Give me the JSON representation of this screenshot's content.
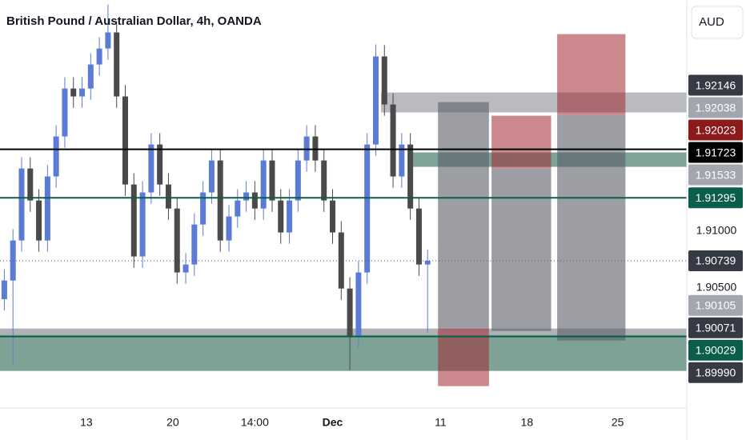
{
  "chart_data": {
    "type": "candlestick",
    "title": "British Pound / Australian Dollar, 4h, OANDA",
    "currency": "AUD",
    "xlim": [
      0,
      79.5
    ],
    "ylim": [
      1.8944,
      1.9304
    ],
    "xticks": [
      {
        "value": 10,
        "label": "13"
      },
      {
        "value": 20,
        "label": "20"
      },
      {
        "value": 29.5,
        "label": "14:00"
      },
      {
        "value": 38.5,
        "label": "Dec"
      },
      {
        "value": 51,
        "label": "11"
      },
      {
        "value": 61,
        "label": "18"
      },
      {
        "value": 71.5,
        "label": "25"
      }
    ],
    "yticks": [
      {
        "value": 1.91,
        "label": "1.91000"
      },
      {
        "value": 1.905,
        "label": "1.90500"
      }
    ],
    "up_color": "#5b7bd5",
    "down_color": "#4a4a4a",
    "open": [
      1.904,
      1.90565,
      1.90918,
      1.91553,
      1.91271,
      1.90918,
      1.91483,
      1.91836,
      1.92259,
      1.92189,
      1.92259,
      1.92471,
      1.92612,
      1.92754,
      1.92189,
      1.91412,
      1.90777,
      1.91342,
      1.91765,
      1.91412,
      1.912,
      1.90636,
      1.90706,
      1.91059,
      1.91342,
      1.91624,
      1.90918,
      1.9113,
      1.91271,
      1.91342,
      1.912,
      1.91624,
      1.91271,
      1.90989,
      1.91271,
      1.91624,
      1.91836,
      1.91624,
      1.91271,
      1.90989,
      1.90494,
      1.90071,
      1.90636,
      1.91765,
      1.92542,
      1.92118,
      1.91483,
      1.91765,
      1.912,
      1.90706
    ],
    "high": [
      1.90665,
      1.91018,
      1.91653,
      1.91653,
      1.91371,
      1.91583,
      1.91936,
      1.92359,
      1.92359,
      1.92359,
      1.92571,
      1.92712,
      1.93001,
      1.92854,
      1.92289,
      1.91512,
      1.91442,
      1.91865,
      1.91865,
      1.91512,
      1.913,
      1.90806,
      1.91159,
      1.91442,
      1.91724,
      1.91724,
      1.9123,
      1.91371,
      1.91442,
      1.91442,
      1.91724,
      1.91724,
      1.91371,
      1.91371,
      1.91724,
      1.91936,
      1.91936,
      1.91724,
      1.91371,
      1.91089,
      1.90594,
      1.90736,
      1.91865,
      1.92648,
      1.92642,
      1.92218,
      1.91865,
      1.91865,
      1.913,
      1.90839
    ],
    "low": [
      1.903,
      1.89824,
      1.90818,
      1.91171,
      1.90818,
      1.90818,
      1.91383,
      1.91736,
      1.92089,
      1.92089,
      1.92159,
      1.92371,
      1.92512,
      1.92089,
      1.91312,
      1.90677,
      1.90677,
      1.91242,
      1.91312,
      1.911,
      1.90536,
      1.90536,
      1.90606,
      1.90959,
      1.91242,
      1.90818,
      1.90818,
      1.9103,
      1.91171,
      1.911,
      1.911,
      1.91171,
      1.90889,
      1.90889,
      1.91171,
      1.91524,
      1.91524,
      1.91171,
      1.90889,
      1.90394,
      1.89775,
      1.89971,
      1.90536,
      1.91665,
      1.92018,
      1.91383,
      1.91383,
      1.911,
      1.90606,
      1.90106
    ],
    "close": [
      1.90565,
      1.90918,
      1.91553,
      1.91271,
      1.90918,
      1.91483,
      1.91836,
      1.92259,
      1.92189,
      1.92259,
      1.92471,
      1.92612,
      1.92754,
      1.92189,
      1.91412,
      1.90777,
      1.91342,
      1.91765,
      1.91412,
      1.912,
      1.90636,
      1.90706,
      1.91059,
      1.91342,
      1.91624,
      1.90918,
      1.9113,
      1.91271,
      1.91342,
      1.912,
      1.91624,
      1.91271,
      1.90989,
      1.91271,
      1.91624,
      1.91836,
      1.91624,
      1.91271,
      1.90989,
      1.90494,
      1.90071,
      1.90636,
      1.91765,
      1.92542,
      1.92118,
      1.91483,
      1.91765,
      1.912,
      1.90706,
      1.90739
    ],
    "zones": [
      {
        "x0": 44.1,
        "x1": 79.5,
        "top": 1.92224,
        "bottom": 1.92048,
        "color": "rgba(100,104,115,0.45)"
      },
      {
        "x0": 47.5,
        "x1": 79.5,
        "top": 1.91695,
        "bottom": 1.91568,
        "color": "rgba(20,90,70,0.55)"
      },
      {
        "x0": 0,
        "x1": 79.5,
        "top": 1.90141,
        "bottom": 1.90085,
        "color": "rgba(110,113,124,0.55)"
      },
      {
        "x0": 0,
        "x1": 79.5,
        "top": 1.90085,
        "bottom": 1.89767,
        "color": "rgba(40,100,80,0.6)"
      },
      {
        "x0": 50.7,
        "x1": 56.6,
        "top": 1.92139,
        "bottom": 1.90141,
        "color": "rgba(90,94,104,0.6)"
      },
      {
        "x0": 50.7,
        "x1": 56.6,
        "top": 1.90141,
        "bottom": 1.89633,
        "color": "rgba(160,40,50,0.55)"
      },
      {
        "x0": 56.9,
        "x1": 63.8,
        "top": 1.92019,
        "bottom": 1.91553,
        "color": "rgba(160,40,50,0.55)"
      },
      {
        "x0": 56.9,
        "x1": 63.8,
        "top": 1.91553,
        "bottom": 1.9012,
        "color": "rgba(90,94,104,0.6)"
      },
      {
        "x0": 64.5,
        "x1": 72.4,
        "top": 1.92739,
        "bottom": 1.92026,
        "color": "rgba(160,40,50,0.55)"
      },
      {
        "x0": 64.5,
        "x1": 72.4,
        "top": 1.92026,
        "bottom": 1.90035,
        "color": "rgba(90,94,104,0.6)"
      }
    ],
    "levels": [
      {
        "value": 1.91723,
        "color": "#000000",
        "style": "solid"
      },
      {
        "value": 1.91295,
        "color": "#0b5e4a",
        "style": "solid"
      },
      {
        "value": 1.90739,
        "color": "#555555",
        "style": "dotted"
      },
      {
        "value": 1.90071,
        "color": "#0b5e4a",
        "style": "solid"
      }
    ],
    "price_tags": [
      {
        "value": 1.92146,
        "label": "1.92146",
        "bg": "#363a45",
        "fg": "#ffffff"
      },
      {
        "value": 1.92038,
        "label": "1.92038",
        "bg": "#a3a6ae",
        "fg": "#ffffff"
      },
      {
        "value": 1.92023,
        "label": "1.92023",
        "bg": "#8b1a1a",
        "fg": "#ffffff"
      },
      {
        "value": 1.91723,
        "label": "1.91723",
        "bg": "#000000",
        "fg": "#ffffff"
      },
      {
        "value": 1.91533,
        "label": "1.91533",
        "bg": "#a3a6ae",
        "fg": "#ffffff"
      },
      {
        "value": 1.91295,
        "label": "1.91295",
        "bg": "#0b5e4a",
        "fg": "#ffffff"
      },
      {
        "value": 1.90739,
        "label": "1.90739",
        "bg": "#363a45",
        "fg": "#ffffff"
      },
      {
        "value": 1.90105,
        "label": "1.90105",
        "bg": "#a3a6ae",
        "fg": "#ffffff"
      },
      {
        "value": 1.90071,
        "label": "1.90071",
        "bg": "#363a45",
        "fg": "#ffffff"
      },
      {
        "value": 1.90029,
        "label": "1.90029",
        "bg": "#0b5e4a",
        "fg": "#ffffff"
      },
      {
        "value": 1.8999,
        "label": "1.89990",
        "bg": "#363a45",
        "fg": "#ffffff"
      }
    ]
  }
}
